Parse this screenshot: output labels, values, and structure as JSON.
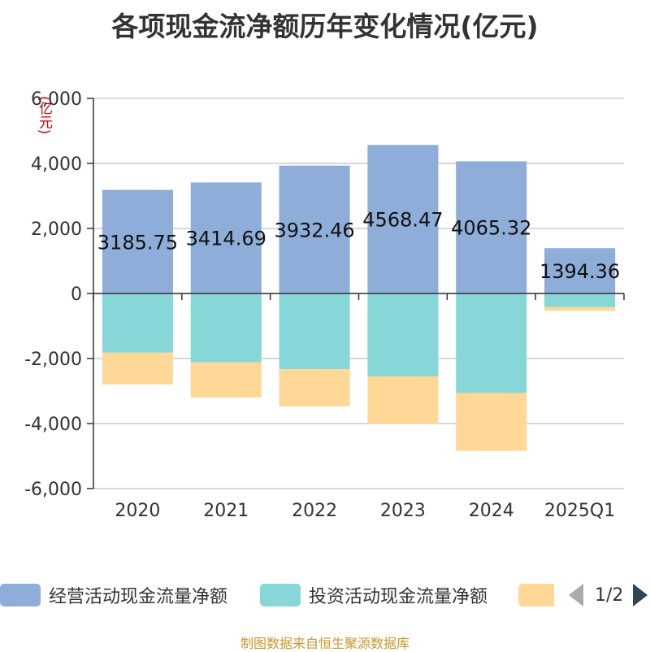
{
  "title": "各项现金流净额历年变化情况(亿元)",
  "source": "制图数据来自恒生聚源数据库",
  "legend": {
    "items": [
      {
        "label": "经营活动现金流量净额",
        "color": "#8eadd9"
      },
      {
        "label": "投资活动现金流量净额",
        "color": "#87d6d8"
      },
      {
        "label": "",
        "color": "#ffd898"
      }
    ],
    "page": "1/2"
  },
  "chart_data": {
    "type": "bar",
    "stacked": true,
    "categories": [
      "2020",
      "2021",
      "2022",
      "2023",
      "2024",
      "2025Q1"
    ],
    "ylabel": "(亿元)",
    "ylim": [
      -6000,
      6000
    ],
    "yticks": [
      6000,
      4000,
      2000,
      0,
      -2000,
      -4000,
      -6000
    ],
    "ytick_labels": [
      "6,000",
      "4,000",
      "2,000",
      "0",
      "-2,000",
      "-4,000",
      "-6,000"
    ],
    "grid": true,
    "series": [
      {
        "name": "经营活动现金流量净额",
        "color": "#8eadd9",
        "values": [
          3185.75,
          3414.69,
          3932.46,
          4568.47,
          4065.32,
          1394.36
        ],
        "labels": [
          "3185.75",
          "3414.69",
          "3932.46",
          "4568.47",
          "4065.32",
          "1394.36"
        ]
      },
      {
        "name": "投资活动现金流量净额",
        "color": "#87d6d8",
        "values": [
          -1820,
          -2120,
          -2330,
          -2550,
          -3060,
          -420
        ]
      },
      {
        "color": "#ffd898",
        "values": [
          -980,
          -1080,
          -1140,
          -1460,
          -1780,
          -110
        ]
      }
    ]
  }
}
